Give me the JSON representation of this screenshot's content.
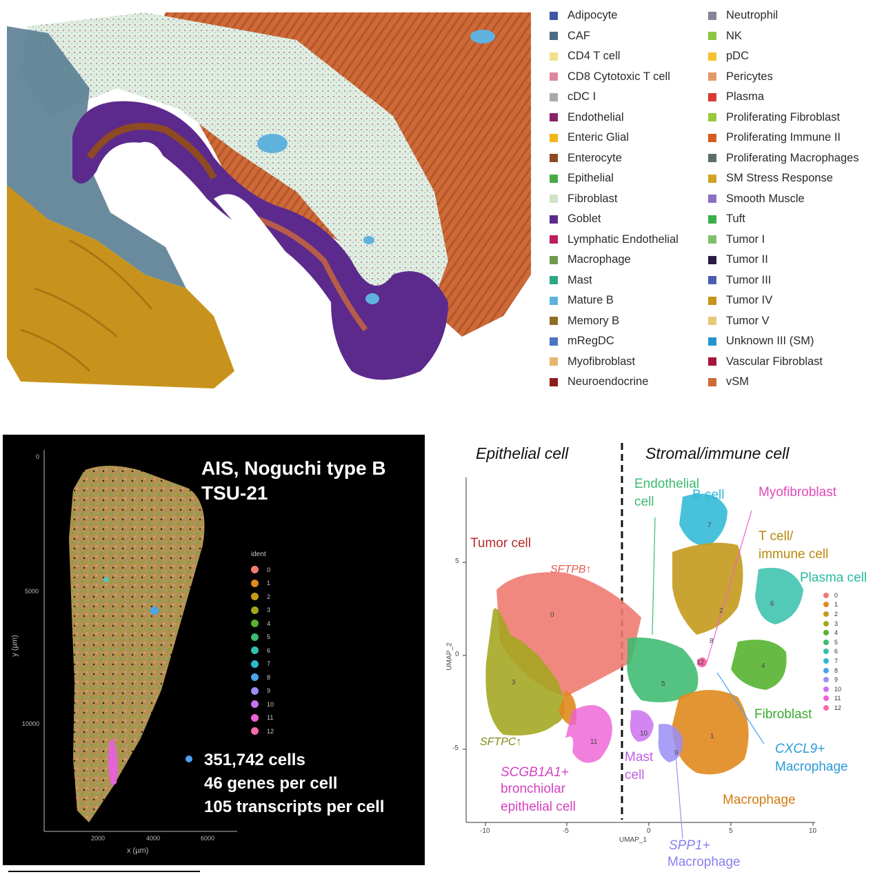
{
  "top_panel": {
    "legend": [
      {
        "label": "Adipocyte",
        "color": "#3a56a6"
      },
      {
        "label": "CAF",
        "color": "#4a6b85"
      },
      {
        "label": "CD4 T cell",
        "color": "#efe08a"
      },
      {
        "label": "CD8 Cytotoxic T cell",
        "color": "#e0879e"
      },
      {
        "label": "cDC I",
        "color": "#a9a9a9"
      },
      {
        "label": "Endothelial",
        "color": "#8b2067"
      },
      {
        "label": "Enteric Glial",
        "color": "#f2b51c"
      },
      {
        "label": "Enterocyte",
        "color": "#8e4a22"
      },
      {
        "label": "Epithelial",
        "color": "#49a946"
      },
      {
        "label": "Fibroblast",
        "color": "#cfe4c2"
      },
      {
        "label": "Goblet",
        "color": "#5c2a8c"
      },
      {
        "label": "Lymphatic Endothelial",
        "color": "#bc1d5f"
      },
      {
        "label": "Macrophage",
        "color": "#6f9a4c"
      },
      {
        "label": "Mast",
        "color": "#2aa886"
      },
      {
        "label": "Mature B",
        "color": "#5fb2de"
      },
      {
        "label": "Memory B",
        "color": "#8e6d23"
      },
      {
        "label": "mRegDC",
        "color": "#4a74c2"
      },
      {
        "label": "Myofibroblast",
        "color": "#e6b66e"
      },
      {
        "label": "Neuroendocrine",
        "color": "#8e1a1d"
      },
      {
        "label": "Neutrophil",
        "color": "#8a8298"
      },
      {
        "label": "NK",
        "color": "#8cc63f"
      },
      {
        "label": "pDC",
        "color": "#f6c12e"
      },
      {
        "label": "Pericytes",
        "color": "#e29a6a"
      },
      {
        "label": "Plasma",
        "color": "#d83a33"
      },
      {
        "label": "Proliferating Fibroblast",
        "color": "#9bc83a"
      },
      {
        "label": "Proliferating Immune II",
        "color": "#d75a1e"
      },
      {
        "label": "Proliferating Macrophages",
        "color": "#5a6e66"
      },
      {
        "label": "SM Stress Response",
        "color": "#d4a128"
      },
      {
        "label": "Smooth Muscle",
        "color": "#8a70c2"
      },
      {
        "label": "Tuft",
        "color": "#3aae49"
      },
      {
        "label": "Tumor I",
        "color": "#7fc06a"
      },
      {
        "label": "Tumor II",
        "color": "#2a1a45"
      },
      {
        "label": "Tumor III",
        "color": "#4a5fb0"
      },
      {
        "label": "Tumor IV",
        "color": "#c8931c"
      },
      {
        "label": "Tumor V",
        "color": "#e7c878"
      },
      {
        "label": "Unknown III (SM)",
        "color": "#2496cf"
      },
      {
        "label": "Vascular Fibroblast",
        "color": "#a3153a"
      },
      {
        "label": "vSM",
        "color": "#cd6a38"
      }
    ]
  },
  "spatial_panel": {
    "title_line1": "AIS, Noguchi type B",
    "title_line2": "TSU-21",
    "stat_cells": "351,742 cells",
    "stat_genes": "46 genes per cell",
    "stat_transcripts": "105 transcripts per cell",
    "legend_title": "ident",
    "x_label": "x (µm)",
    "y_label": "y (µm)",
    "x_ticks": [
      "2000",
      "4000",
      "6000"
    ],
    "y_ticks": [
      "0",
      "5000",
      "10000"
    ]
  },
  "ident_colors": [
    "#f07b72",
    "#e0891e",
    "#c49a1c",
    "#a3a61e",
    "#56b430",
    "#3cba6f",
    "#35bfab",
    "#2fb8d5",
    "#4aa3ef",
    "#9a8ef6",
    "#cb70f0",
    "#ed5fd6",
    "#f868aa"
  ],
  "ident_labels": [
    "0",
    "1",
    "2",
    "3",
    "4",
    "5",
    "6",
    "7",
    "8",
    "9",
    "10",
    "11",
    "12"
  ],
  "umap_panel": {
    "header_left": "Epithelial cell",
    "header_right": "Stromal/immune cell",
    "x_label": "UMAP_1",
    "y_label": "UMAP_2",
    "x_ticks": [
      "-10",
      "-5",
      "0",
      "5",
      "10"
    ],
    "y_ticks": [
      "5",
      "0",
      "-5"
    ],
    "labels": {
      "tumor_cell": "Tumor cell",
      "sftpb": "SFTPB↑",
      "sftpc": "SFTPC↑",
      "scgb_line1": "SCGB1A1+",
      "scgb_line2": "bronchiolar",
      "scgb_line3": "epithelial cell",
      "endothelial_line1": "Endothelial",
      "endothelial_line2": "cell",
      "b_cell": "B cell",
      "myofibroblast": "Myofibroblast",
      "tcell_line1": "T cell/",
      "tcell_line2": "immune cell",
      "plasma_cell": "Plasma cell",
      "fibroblast": "Fibroblast",
      "cxcl9_line1": "CXCL9+",
      "cxcl9_line2": "Macrophage",
      "mast_line1": "Mast",
      "mast_line2": "cell",
      "macrophage": "Macrophage",
      "spp1_line1": "SPP1+",
      "spp1_line2": "Macrophage"
    },
    "cluster_numbers": [
      "0",
      "1",
      "2",
      "3",
      "4",
      "5",
      "6",
      "7",
      "8",
      "9",
      "10",
      "11",
      "12"
    ]
  }
}
